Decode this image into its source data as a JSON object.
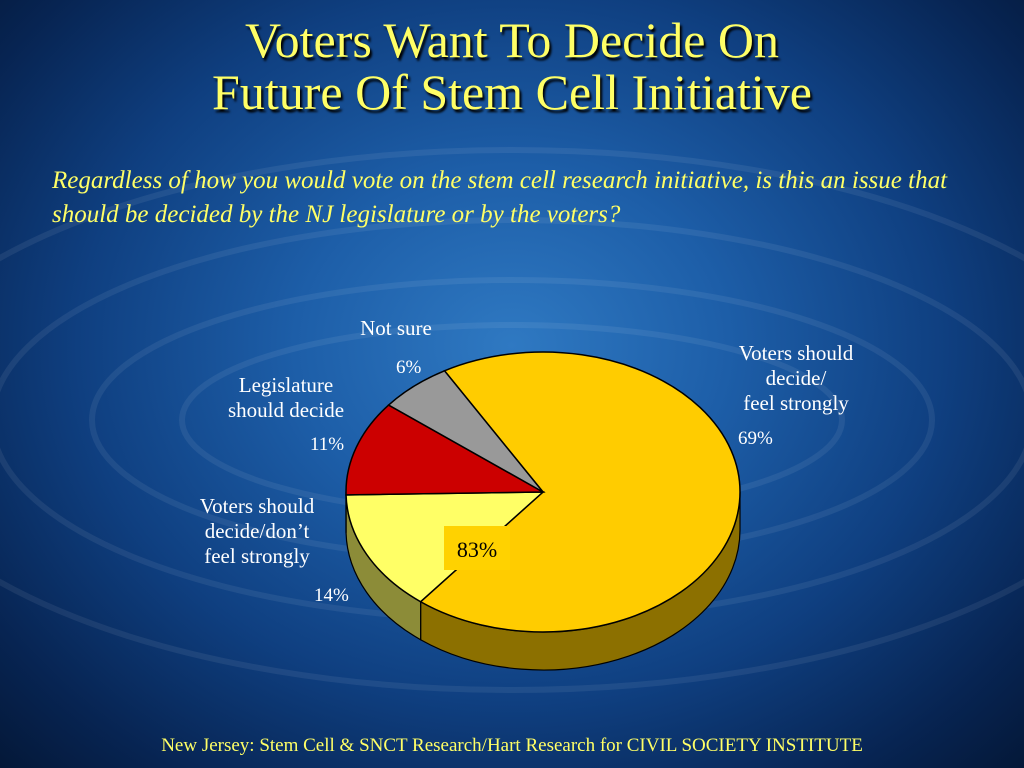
{
  "slide": {
    "title_line1": "Voters Want To Decide On",
    "title_line2": "Future Of Stem Cell Initiative",
    "question": "Regardless of how you would vote on the stem cell research initiative, is this an issue that should be decided by the NJ legislature or by the voters?",
    "source": "New Jersey: Stem Cell & SNCT Research/Hart Research for CIVIL SOCIETY INSTITUTE"
  },
  "chart_data": {
    "type": "pie",
    "title": "",
    "slices": [
      {
        "label": "Voters should decide/ feel strongly",
        "label_lines": [
          "Voters should",
          "decide/",
          "feel strongly"
        ],
        "value": 69,
        "value_label": "69%",
        "color": "#ffcc00"
      },
      {
        "label": "Voters should decide/don’t feel strongly",
        "label_lines": [
          "Voters should",
          "decide/don’t",
          "feel strongly"
        ],
        "value": 14,
        "value_label": "14%",
        "color": "#ffff66"
      },
      {
        "label": "Legislature should decide",
        "label_lines": [
          "Legislature",
          "should decide"
        ],
        "value": 11,
        "value_label": "11%",
        "color": "#cc0000"
      },
      {
        "label": "Not sure",
        "label_lines": [
          "Not sure"
        ],
        "value": 6,
        "value_label": "6%",
        "color": "#999999"
      }
    ],
    "annotation": "83%"
  },
  "colors": {
    "title": "#ffff66",
    "label": "#ffffff"
  }
}
